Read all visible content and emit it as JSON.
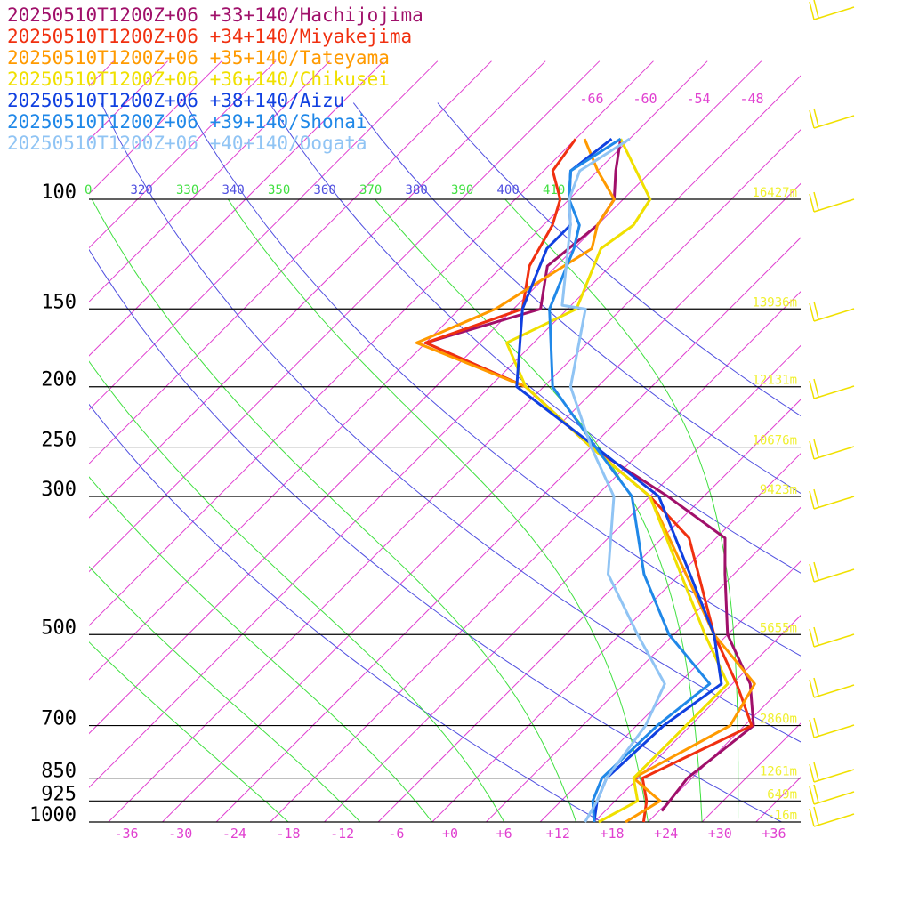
{
  "chart_data": {
    "type": "line",
    "title": "",
    "xlabel": "",
    "ylabel": "",
    "x_ticks": [
      "-36",
      "-30",
      "-24",
      "-18",
      "-12",
      "-6",
      "+0",
      "+6",
      "+12",
      "+18",
      "+24",
      "+30",
      "+36"
    ],
    "x_tick_values": [
      -36,
      -30,
      -24,
      -18,
      -12,
      -6,
      0,
      6,
      12,
      18,
      24,
      30,
      36
    ],
    "y_scale": "log",
    "pressure_levels": [
      {
        "p": 100,
        "label": "100",
        "height": "16427m"
      },
      {
        "p": 150,
        "label": "150",
        "height": "13936m"
      },
      {
        "p": 200,
        "label": "200",
        "height": "12131m"
      },
      {
        "p": 250,
        "label": "250",
        "height": "10676m"
      },
      {
        "p": 300,
        "label": "300",
        "height": "9423m"
      },
      {
        "p": 500,
        "label": "500",
        "height": "5655m"
      },
      {
        "p": 700,
        "label": "700",
        "height": "2860m"
      },
      {
        "p": 850,
        "label": "850",
        "height": "1261m"
      },
      {
        "p": 925,
        "label": "925",
        "height": "649m"
      },
      {
        "p": 1000,
        "label": "1000",
        "height": "-16m"
      }
    ],
    "theta_labels": [
      "0",
      "320",
      "330",
      "340",
      "350",
      "360",
      "370",
      "380",
      "390",
      "400",
      "410"
    ],
    "mixing_labels": [
      "-66",
      "-60",
      "-54",
      "-48"
    ],
    "series": [
      {
        "name": "20250510T1200Z+06 +33+140/Hachijojima",
        "color": "#a0106a",
        "points": [
          [
            960,
            22.3
          ],
          [
            850,
            21.5
          ],
          [
            700,
            23
          ],
          [
            600,
            18
          ],
          [
            500,
            10
          ],
          [
            400,
            3
          ],
          [
            350,
            -1
          ],
          [
            300,
            -12
          ],
          [
            250,
            -26
          ],
          [
            200,
            -40
          ],
          [
            170,
            -56
          ],
          [
            150,
            -47
          ],
          [
            128,
            -51
          ],
          [
            110,
            -50
          ],
          [
            100,
            -51
          ],
          [
            90,
            -54
          ],
          [
            80,
            -57
          ]
        ]
      },
      {
        "name": "20250510T1200Z+06 +34+140/Miyakejima",
        "color": "#f03010",
        "points": [
          [
            1000,
            21.5
          ],
          [
            925,
            19.5
          ],
          [
            850,
            16.5
          ],
          [
            700,
            22.8
          ],
          [
            600,
            16.5
          ],
          [
            500,
            8.5
          ],
          [
            350,
            -5
          ],
          [
            300,
            -14
          ],
          [
            250,
            -26
          ],
          [
            200,
            -40
          ],
          [
            170,
            -56
          ],
          [
            150,
            -49
          ],
          [
            128,
            -53
          ],
          [
            110,
            -55
          ],
          [
            100,
            -57
          ],
          [
            90,
            -61
          ],
          [
            80,
            -62
          ]
        ]
      },
      {
        "name": "20250510T1200Z+06 +35+140/Tateyama",
        "color": "#ff9a00",
        "points": [
          [
            1000,
            19.5
          ],
          [
            925,
            21
          ],
          [
            850,
            15.5
          ],
          [
            700,
            20.4
          ],
          [
            600,
            18.5
          ],
          [
            500,
            8.5
          ],
          [
            300,
            -14
          ],
          [
            250,
            -26
          ],
          [
            200,
            -40
          ],
          [
            170,
            -57
          ],
          [
            150,
            -52
          ],
          [
            120,
            -48
          ],
          [
            110,
            -50
          ],
          [
            100,
            -51
          ],
          [
            90,
            -56
          ],
          [
            80,
            -61
          ]
        ]
      },
      {
        "name": "20250510T1200Z+06 +36+140/Chikusei",
        "color": "#f0e000",
        "points": [
          [
            1000,
            16.5
          ],
          [
            925,
            18.5
          ],
          [
            850,
            15.5
          ],
          [
            700,
            15.5
          ],
          [
            600,
            15.5
          ],
          [
            500,
            7.5
          ],
          [
            300,
            -14
          ],
          [
            250,
            -26
          ],
          [
            200,
            -40
          ],
          [
            170,
            -47
          ],
          [
            150,
            -43
          ],
          [
            120,
            -47
          ],
          [
            110,
            -46
          ],
          [
            100,
            -47
          ],
          [
            80,
            -57
          ]
        ]
      },
      {
        "name": "20250510T1200Z+06 +38+140/Aizu",
        "color": "#1040e0",
        "points": [
          [
            1000,
            16
          ],
          [
            925,
            14
          ],
          [
            850,
            12.5
          ],
          [
            700,
            13
          ],
          [
            600,
            14.8
          ],
          [
            500,
            8.5
          ],
          [
            300,
            -13
          ],
          [
            250,
            -25.5
          ],
          [
            200,
            -41
          ],
          [
            150,
            -49
          ],
          [
            120,
            -53
          ],
          [
            110,
            -53
          ],
          [
            100,
            -56
          ],
          [
            90,
            -59
          ],
          [
            80,
            -58
          ]
        ]
      },
      {
        "name": "20250510T1200Z+06 +39+140/Shonai",
        "color": "#2088e8",
        "points": [
          [
            1000,
            16
          ],
          [
            925,
            13.5
          ],
          [
            850,
            12
          ],
          [
            700,
            12.3
          ],
          [
            600,
            13.5
          ],
          [
            500,
            3.5
          ],
          [
            400,
            -6
          ],
          [
            300,
            -16
          ],
          [
            250,
            -25.5
          ],
          [
            200,
            -37
          ],
          [
            150,
            -46
          ],
          [
            120,
            -50
          ],
          [
            110,
            -52
          ],
          [
            100,
            -56
          ],
          [
            90,
            -59
          ],
          [
            80,
            -57
          ]
        ]
      },
      {
        "name": "20250510T1200Z+06 +40+140/Oogata",
        "color": "#90c4f4",
        "points": [
          [
            1000,
            15
          ],
          [
            925,
            14
          ],
          [
            850,
            12.5
          ],
          [
            700,
            11
          ],
          [
            600,
            8.5
          ],
          [
            500,
            0
          ],
          [
            400,
            -10
          ],
          [
            300,
            -18
          ],
          [
            250,
            -26
          ],
          [
            200,
            -35
          ],
          [
            150,
            -42
          ],
          [
            148,
            -45
          ],
          [
            110,
            -53
          ],
          [
            100,
            -56
          ],
          [
            90,
            -58
          ],
          [
            80,
            -56
          ]
        ]
      }
    ]
  },
  "colors": {
    "isotherm": "#e040d0",
    "dry_adiabat": "#5050e0",
    "moist_adiabat": "#40e040",
    "pressure_line": "#000000",
    "wind_barb": "#f0e000",
    "height_label": "#f0f030"
  }
}
